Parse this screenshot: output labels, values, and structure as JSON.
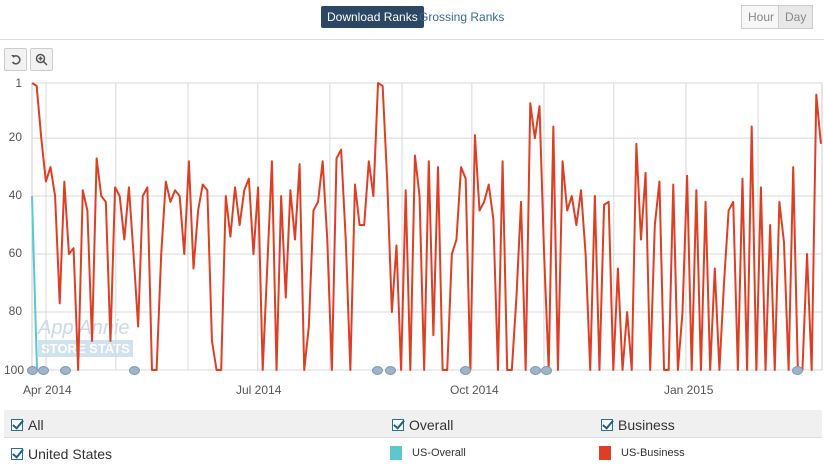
{
  "header": {
    "tabs": [
      {
        "label": "Download Ranks",
        "active": true
      },
      {
        "label": "Grossing Ranks",
        "active": false
      }
    ],
    "granularity": [
      {
        "label": "Hour",
        "active": false
      },
      {
        "label": "Day",
        "active": true
      }
    ]
  },
  "toolbar": {
    "reset_icon": "undo-icon",
    "zoom_icon": "zoom-in-icon"
  },
  "watermark": {
    "line1": "App Annie",
    "line2": "STORE STATS"
  },
  "legend": {
    "filters": [
      {
        "label": "All",
        "checked": true
      },
      {
        "label": "Overall",
        "checked": true
      },
      {
        "label": "Business",
        "checked": true
      }
    ],
    "country": {
      "label": "United States",
      "checked": true
    },
    "series": [
      {
        "label": "US-Overall",
        "color": "#5bc8d0"
      },
      {
        "label": "US-Business",
        "color": "#dd3f24"
      }
    ]
  },
  "chart_data": {
    "type": "line",
    "y_reversed": true,
    "ylim": [
      1,
      100
    ],
    "yticks": [
      "1",
      "20",
      "40",
      "60",
      "80",
      "100"
    ],
    "xticks": [
      "Apr 2014",
      "Jul 2014",
      "Oct 2014",
      "Jan 2015"
    ],
    "x_start": "2014-03-26",
    "x_end": "2015-02-28",
    "grid": true,
    "series": [
      {
        "name": "US-Overall",
        "color": "#5bc8d0",
        "values": [
          40,
          100
        ]
      },
      {
        "name": "US-Business",
        "color": "#dd3f24",
        "values": [
          1,
          2,
          20,
          35,
          30,
          40,
          77,
          35,
          60,
          58,
          100,
          38,
          45,
          90,
          27,
          40,
          42,
          90,
          37,
          40,
          55,
          37,
          60,
          85,
          40,
          37,
          100,
          100,
          60,
          35,
          42,
          38,
          40,
          60,
          28,
          65,
          45,
          36,
          38,
          90,
          100,
          100,
          40,
          54,
          37,
          50,
          38,
          34,
          60,
          37,
          100,
          64,
          28,
          100,
          40,
          75,
          38,
          55,
          29,
          100,
          85,
          45,
          42,
          28,
          55,
          100,
          27,
          24,
          55,
          100,
          36,
          50,
          50,
          28,
          40,
          1,
          2,
          35,
          80,
          57,
          100,
          38,
          100,
          26,
          40,
          100,
          28,
          88,
          30,
          100,
          100,
          60,
          55,
          30,
          34,
          100,
          19,
          45,
          42,
          36,
          48,
          100,
          28,
          100,
          100,
          75,
          42,
          100,
          8,
          20,
          9,
          60,
          100,
          16,
          100,
          28,
          45,
          40,
          50,
          38,
          60,
          100,
          40,
          100,
          43,
          42,
          100,
          65,
          100,
          80,
          100,
          22,
          55,
          32,
          100,
          50,
          35,
          100,
          100,
          36,
          100,
          80,
          33,
          100,
          38,
          100,
          42,
          100,
          65,
          100,
          70,
          45,
          42,
          100,
          34,
          100,
          16,
          100,
          37,
          100,
          50,
          100,
          42,
          56,
          100,
          30,
          100,
          100,
          60,
          100,
          5,
          22
        ]
      }
    ]
  }
}
